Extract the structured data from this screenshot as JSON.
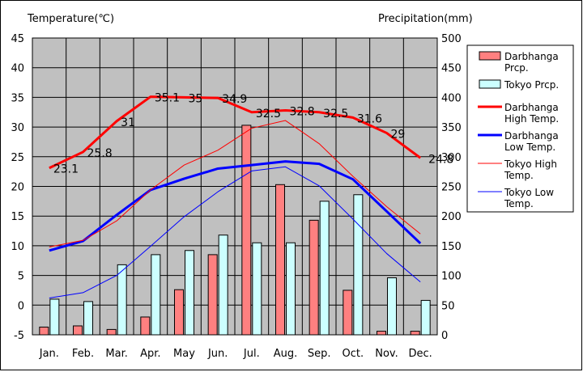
{
  "chart_data": {
    "type": "bar",
    "categories": [
      "Jan.",
      "Feb.",
      "Mar.",
      "Apr.",
      "May",
      "Jun.",
      "Jul.",
      "Aug.",
      "Sep.",
      "Oct.",
      "Nov.",
      "Dec."
    ],
    "ylabel": "Temperature(℃)",
    "y2label": "Precipitation(mm)",
    "ylim": [
      -5,
      45
    ],
    "y2lim": [
      0,
      500
    ],
    "yticks": [
      "-5",
      "0",
      "5",
      "10",
      "15",
      "20",
      "25",
      "30",
      "35",
      "40",
      "45"
    ],
    "y2ticks": [
      "0",
      "50",
      "100",
      "150",
      "200",
      "250",
      "300",
      "350",
      "400",
      "450",
      "500"
    ],
    "grid": true,
    "legend_position": "right",
    "colors": {
      "plot_background": "#c0c0c0",
      "darbhanga_prcp": "#ff8080",
      "tokyo_prcp": "#ccffff",
      "darbhanga_high": "#ff0000",
      "darbhanga_low": "#0000ff",
      "tokyo_high": "#ff0000",
      "tokyo_low": "#0000ff"
    },
    "bar_series": [
      {
        "key": "darbhanga_prcp",
        "legend": [
          "Darbhanga",
          "Prcp."
        ],
        "axis": "right",
        "values": [
          13,
          15,
          9,
          30,
          76,
          135,
          353,
          253,
          193,
          75,
          6,
          6
        ]
      },
      {
        "key": "tokyo_prcp",
        "legend": [
          "Tokyo Prcp."
        ],
        "axis": "right",
        "values": [
          60,
          56,
          118,
          135,
          142,
          168,
          155,
          155,
          225,
          236,
          96,
          58
        ]
      }
    ],
    "line_series": [
      {
        "key": "darbhanga_high",
        "legend": [
          "Darbhanga",
          "High Temp."
        ],
        "axis": "left",
        "width": 3,
        "values": [
          23.1,
          25.8,
          31,
          35.1,
          35,
          34.9,
          32.5,
          32.8,
          32.5,
          31.6,
          29,
          24.8
        ],
        "labels": [
          "23.1",
          "25.8",
          "31",
          "35.1",
          "35",
          "34.9",
          "32.5",
          "32.8",
          "32.5",
          "31.6",
          "29",
          "24.8"
        ]
      },
      {
        "key": "darbhanga_low",
        "legend": [
          "Darbhanga",
          "Low Temp."
        ],
        "axis": "left",
        "width": 3,
        "values": [
          9.2,
          10.8,
          15.2,
          19.4,
          21.3,
          23.0,
          23.6,
          24.2,
          23.8,
          21.2,
          15.8,
          10.4
        ]
      },
      {
        "key": "tokyo_high",
        "legend": [
          "Tokyo High",
          "Temp."
        ],
        "axis": "left",
        "width": 1,
        "values": [
          9.8,
          10.9,
          14.2,
          19.4,
          23.6,
          26.1,
          29.8,
          31.1,
          27.2,
          21.7,
          16.6,
          12.0
        ]
      },
      {
        "key": "tokyo_low",
        "legend": [
          "Tokyo Low",
          "Temp."
        ],
        "axis": "left",
        "width": 1,
        "values": [
          1.2,
          2.1,
          5.0,
          9.9,
          14.9,
          19.1,
          22.6,
          23.3,
          20.1,
          14.5,
          8.7,
          3.9
        ]
      }
    ]
  }
}
